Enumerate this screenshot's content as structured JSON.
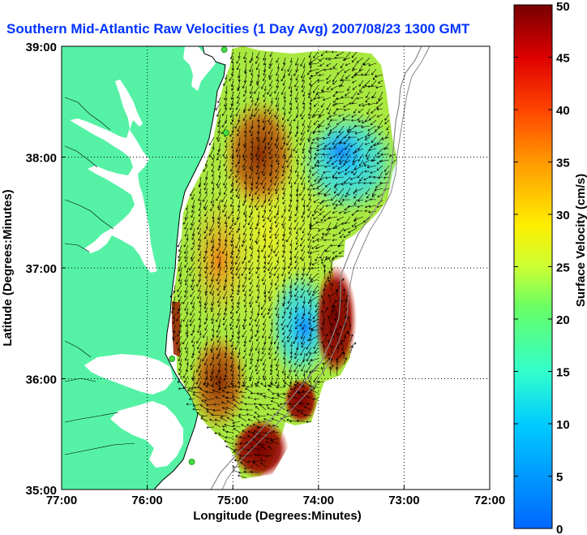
{
  "title": "Southern Mid-Atlantic Raw Velocities (1 Day Avg) 2007/08/23 1300 GMT",
  "map": {
    "xlabel": "Longitude (Degrees:Minutes)",
    "ylabel": "Latitude (Degrees:Minutes)",
    "lon_range": [
      -77,
      -72
    ],
    "lat_range": [
      35,
      39
    ],
    "lon_ticks": [
      {
        "value": -77,
        "label": "77:00"
      },
      {
        "value": -76,
        "label": "76:00"
      },
      {
        "value": -75,
        "label": "75:00"
      },
      {
        "value": -74,
        "label": "74:00"
      },
      {
        "value": -73,
        "label": "73:00"
      },
      {
        "value": -72,
        "label": "72:00"
      }
    ],
    "lat_ticks": [
      {
        "value": 35,
        "label": "35:00"
      },
      {
        "value": 36,
        "label": "36:00"
      },
      {
        "value": 37,
        "label": "37:00"
      },
      {
        "value": 38,
        "label": "38:00"
      },
      {
        "value": 39,
        "label": "39:00"
      }
    ],
    "land_color": "#55f2a6",
    "station_color": "#44dd44",
    "stations": [
      {
        "lon": -75.1,
        "lat": 38.97
      },
      {
        "lon": -75.08,
        "lat": 38.22
      },
      {
        "lon": -75.71,
        "lat": 36.18
      },
      {
        "lon": -75.48,
        "lat": 35.25
      }
    ],
    "grid": true
  },
  "colorbar": {
    "label": "Surface Velocity (cm/s)",
    "min": 0,
    "max": 50,
    "ticks": [
      {
        "value": 0,
        "label": "0"
      },
      {
        "value": 5,
        "label": "5"
      },
      {
        "value": 10,
        "label": "10"
      },
      {
        "value": 15,
        "label": "15"
      },
      {
        "value": 20,
        "label": "20"
      },
      {
        "value": 25,
        "label": "25"
      },
      {
        "value": 30,
        "label": "30"
      },
      {
        "value": 35,
        "label": "35"
      },
      {
        "value": 40,
        "label": "40"
      },
      {
        "value": 45,
        "label": "45"
      },
      {
        "value": 50,
        "label": "50"
      }
    ]
  }
}
